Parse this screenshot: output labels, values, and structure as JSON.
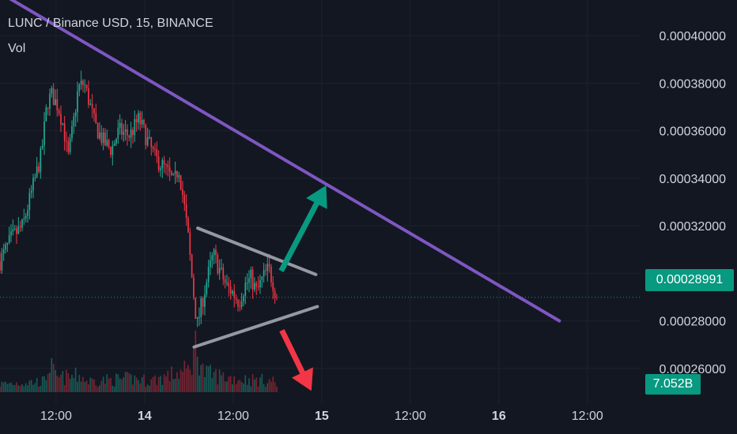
{
  "header": {
    "symbol": "LUNC / Binance USD, 15, BINANCE",
    "volume_label": "Vol"
  },
  "price_tag": {
    "value": "0.00028991",
    "color": "#089981"
  },
  "volume_tag": {
    "value": "7.052B",
    "color": "#089981"
  },
  "colors": {
    "background": "#131722",
    "up": "#22ab94",
    "down": "#f23645",
    "trendline": "#7e57c2",
    "triangle": "#9598a1",
    "arrow_up": "#089981",
    "arrow_down": "#f23645",
    "grid": "#1e222d",
    "axis_text": "#d1d4dc"
  },
  "chart_data": {
    "type": "candlestick",
    "title": "LUNC / Binance USD, 15, BINANCE",
    "x_ticks": [
      "12:00",
      "14",
      "12:00",
      "15",
      "12:00",
      "16",
      "12:00"
    ],
    "x_tick_hours": [
      12,
      24,
      36,
      48,
      60,
      72,
      84
    ],
    "y_ticks": [
      0.00026,
      0.00028,
      0.0003,
      0.00032,
      0.00034,
      0.00036,
      0.00038,
      0.0004
    ],
    "y_tick_labels": [
      "0.00026000",
      "0.00028000",
      "0.00030000",
      "0.00032000",
      "0.00034000",
      "0.00036000",
      "0.00038000",
      "0.00040000"
    ],
    "ylim": [
      0.000245,
      0.000415
    ],
    "xlim_hours": [
      4.4,
      91.2
    ],
    "last_price": 0.00028991,
    "last_volume": "7.052B",
    "price_path": [
      [
        4.4,
        0.000305
      ],
      [
        6,
        0.000315
      ],
      [
        7.5,
        0.00032
      ],
      [
        9,
        0.000338
      ],
      [
        10,
        0.00035
      ],
      [
        10.8,
        0.000372
      ],
      [
        11.4,
        0.000375
      ],
      [
        12.3,
        0.00037
      ],
      [
        13,
        0.000362
      ],
      [
        13.6,
        0.000348
      ],
      [
        14.3,
        0.000362
      ],
      [
        15,
        0.000378
      ],
      [
        15.8,
        0.00038
      ],
      [
        16.5,
        0.000372
      ],
      [
        17.3,
        0.000362
      ],
      [
        18.5,
        0.000355
      ],
      [
        19.5,
        0.000352
      ],
      [
        20.5,
        0.00036
      ],
      [
        22,
        0.000358
      ],
      [
        23.2,
        0.000365
      ],
      [
        24.5,
        0.000355
      ],
      [
        25.5,
        0.000348
      ],
      [
        26.5,
        0.000345
      ],
      [
        27.2,
        0.000342
      ],
      [
        28,
        0.000338
      ],
      [
        28.6,
        0.000345
      ],
      [
        29.3,
        0.00033
      ],
      [
        29.9,
        0.000315
      ],
      [
        30.5,
        0.000295
      ],
      [
        31.1,
        0.000278
      ],
      [
        31.8,
        0.000288
      ],
      [
        32.5,
        0.000298
      ],
      [
        33.3,
        0.000308
      ],
      [
        34.1,
        0.000302
      ],
      [
        35,
        0.000295
      ],
      [
        35.9,
        0.000292
      ],
      [
        36.8,
        0.000288
      ],
      [
        37.6,
        0.000295
      ],
      [
        38.4,
        0.000298
      ],
      [
        39.2,
        0.000292
      ],
      [
        40,
        0.000298
      ],
      [
        40.8,
        0.000302
      ],
      [
        41.4,
        0.000296
      ],
      [
        42,
        0.000289
      ]
    ],
    "volume_max": 18,
    "volume_path": [
      [
        4.4,
        3
      ],
      [
        10.5,
        4
      ],
      [
        11,
        11
      ],
      [
        12,
        5
      ],
      [
        15.5,
        6
      ],
      [
        16,
        4
      ],
      [
        22.8,
        5
      ],
      [
        24.5,
        4
      ],
      [
        30,
        8
      ],
      [
        31,
        18
      ],
      [
        32,
        7
      ],
      [
        34,
        6
      ],
      [
        36,
        5
      ],
      [
        42,
        4
      ]
    ],
    "drawings": {
      "downtrend_line": [
        [
          4.4,
          0.000418
        ],
        [
          80.2,
          0.00028
        ]
      ],
      "triangle_upper": [
        [
          31.2,
          0.000319
        ],
        [
          47.2,
          0.0002995
        ]
      ],
      "triangle_lower": [
        [
          30.7,
          0.000269
        ],
        [
          47.4,
          0.000286
        ]
      ],
      "arrow_up": {
        "from": [
          42.5,
          0.000301
        ],
        "to": [
          48.6,
          0.000337
        ]
      },
      "arrow_down": {
        "from": [
          42.6,
          0.000276
        ],
        "to": [
          46.6,
          0.0002505
        ]
      }
    }
  }
}
